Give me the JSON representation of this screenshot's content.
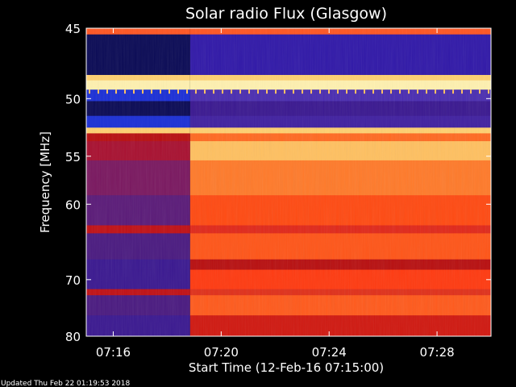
{
  "chart_data": {
    "type": "heatmap",
    "title": "Solar radio Flux (Glasgow)",
    "xlabel": "Start Time (12-Feb-16 07:15:00)",
    "ylabel": "Frequency [MHz]",
    "x_range": [
      "07:15:00",
      "07:30:00"
    ],
    "y_range": [
      45,
      80
    ],
    "x_ticks": [
      "07:16",
      "07:20",
      "07:24",
      "07:28"
    ],
    "y_ticks": [
      45,
      50,
      55,
      60,
      70,
      80
    ],
    "onset_time": "07:18:51",
    "colors": {
      "low": "#2a1a8c",
      "low_alt": "#3a1890",
      "blue_band": "#1b2fd6",
      "very_low": "#0a0a55",
      "mid": "#b80f10",
      "high": "#ff4a12",
      "very_high": "#ffc060",
      "saturated": "#fff1b0",
      "frame": "#ffffff"
    },
    "bands": [
      {
        "from": 45,
        "to": 45.4,
        "before": "#ff5522",
        "after": "#ff5522"
      },
      {
        "from": 45.4,
        "to": 48.2,
        "before": "#0a0a55",
        "after": "#3018a8"
      },
      {
        "from": 48.2,
        "to": 48.6,
        "before": "#ffd070",
        "after": "#ffd070"
      },
      {
        "from": 48.6,
        "to": 49.3,
        "before": "#fff1b0",
        "after": "#fff1b0"
      },
      {
        "from": 49.3,
        "to": 50.2,
        "before": "#1b2fd6",
        "after": "#4a2db0"
      },
      {
        "from": 50.2,
        "to": 51.4,
        "before": "#0a0a55",
        "after": "#3a1890"
      },
      {
        "from": 51.4,
        "to": 52.4,
        "before": "#1b2fd6",
        "after": "#4020a0"
      },
      {
        "from": 52.4,
        "to": 52.9,
        "before": "#ffd070",
        "after": "#ffd070"
      },
      {
        "from": 52.9,
        "to": 53.6,
        "before": "#b80f10",
        "after": "#ff6a22"
      },
      {
        "from": 53.6,
        "to": 55.4,
        "before": "#a81030",
        "after": "#ffc060"
      },
      {
        "from": 55.4,
        "to": 59.0,
        "before": "#7a1860",
        "after": "#ff7a2a"
      },
      {
        "from": 59.0,
        "to": 62.5,
        "before": "#5a1a78",
        "after": "#ff4a12"
      },
      {
        "from": 62.5,
        "to": 63.5,
        "before": "#c01015",
        "after": "#e0281a"
      },
      {
        "from": 63.5,
        "to": 67.0,
        "before": "#4a1a80",
        "after": "#ff5518"
      },
      {
        "from": 67.0,
        "to": 68.5,
        "before": "#3a1890",
        "after": "#b80f10"
      },
      {
        "from": 68.5,
        "to": 71.5,
        "before": "#3a1890",
        "after": "#ff3a10"
      },
      {
        "from": 71.5,
        "to": 72.5,
        "before": "#c01015",
        "after": "#e0301a"
      },
      {
        "from": 72.5,
        "to": 76.0,
        "before": "#4a1a80",
        "after": "#ff5a1c"
      },
      {
        "from": 76.0,
        "to": 80.0,
        "before": "#3a1890",
        "after": "#d01810"
      }
    ]
  },
  "footer": "Updated Thu Feb 22 01:19:53 2018"
}
